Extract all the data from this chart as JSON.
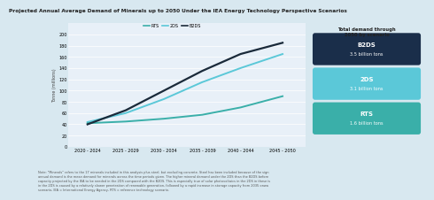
{
  "title": "Projected Annual Average Demand of Minerals up to 2050 Under the IEA Energy Technology Perspective Scenarios",
  "xlabel_values": [
    "2020 - 2024",
    "2025 - 2029",
    "2030 - 2034",
    "2035 - 2039",
    "2040 - 2044",
    "2045 - 2050"
  ],
  "x_numeric": [
    2022,
    2027,
    2032,
    2037,
    2042,
    2047.5
  ],
  "rts_values": [
    42,
    45,
    50,
    57,
    70,
    90
  ],
  "2ds_values": [
    44,
    60,
    85,
    115,
    140,
    165
  ],
  "b2ds_values": [
    40,
    65,
    100,
    135,
    165,
    185
  ],
  "rts_color": "#3aafa9",
  "2ds_color": "#5bc8d8",
  "b2ds_color": "#1a2a3a",
  "ylabel": "Tonne (millions)",
  "ylim": [
    0,
    220
  ],
  "yticks": [
    0,
    20,
    40,
    60,
    80,
    100,
    120,
    140,
    160,
    180,
    200
  ],
  "bg_color": "#d8e8f0",
  "plot_bg": "#e8f0f8",
  "note_text": "Note: \"Minerals\" refers to the 17 minerals included in this analysis plus steel, but excluding concrete. Steel has been included because of the sign\nannual demand is the mean demand for minerals across the time periods given. The higher mineral demand under the 2DS than the B2DS before\ncapacity projected by the IEA to be needed in the 2DS compared with the B2DS. This is especially true of solar photovoltaics in the 2DS in these is\nin the 2DS is caused by a relatively slower penetration of renewable generation, followed by a rapid increase in storage capacity from 2035 onwa\nscenario, IEA = International Energy Agency, RTS = reference technology scenario.",
  "sidebar_title": "Total demand through\n2050 by scenario",
  "b2ds_label": "B2DS",
  "b2ds_total": "3.5 billion tons",
  "2ds_label": "2DS",
  "2ds_total": "3.1 billion tons",
  "rts_label": "RTS",
  "rts_total": "1.6 billion tons",
  "sidebar_bg": "#ccdae6",
  "b2ds_box_color": "#1a2e4a",
  "2ds_box_color": "#5bc8d8",
  "rts_box_color": "#3aafa9"
}
